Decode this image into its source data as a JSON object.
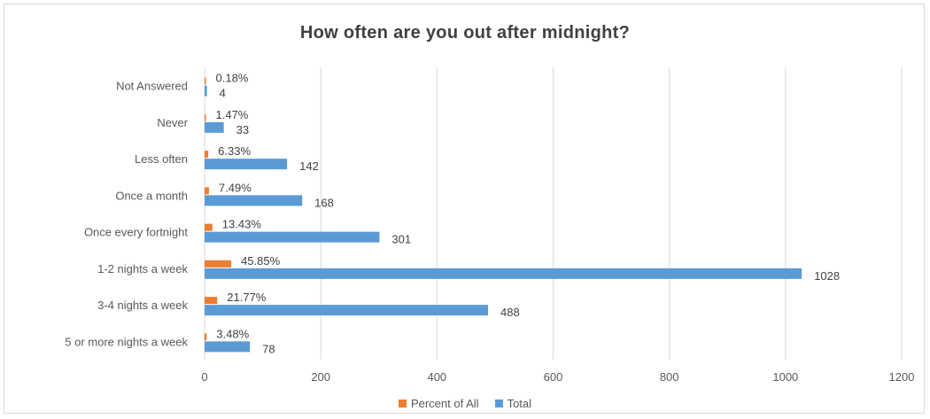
{
  "chart_data": {
    "type": "bar",
    "orientation": "horizontal",
    "title": "How often are you out after midnight?",
    "categories": [
      "Not Answered",
      "Never",
      "Less often",
      "Once a month",
      "Once every fortnight",
      "1-2 nights a week",
      "3-4 nights a week",
      "5 or more nights a week"
    ],
    "series": [
      {
        "name": "Percent of All",
        "color": "#ed7d31",
        "values": [
          0.18,
          1.47,
          6.33,
          7.49,
          13.43,
          45.85,
          21.77,
          3.48
        ],
        "labels": [
          "0.18%",
          "1.47%",
          "6.33%",
          "7.49%",
          "13.43%",
          "45.85%",
          "21.77%",
          "3.48%"
        ]
      },
      {
        "name": "Total",
        "color": "#5b9bd5",
        "values": [
          4,
          33,
          142,
          168,
          301,
          1028,
          488,
          78
        ],
        "labels": [
          "4",
          "33",
          "142",
          "168",
          "301",
          "1028",
          "488",
          "78"
        ]
      }
    ],
    "xlim": [
      0,
      1200
    ],
    "xticks": [
      "0",
      "200",
      "400",
      "600",
      "800",
      "1000",
      "1200"
    ],
    "grid": true,
    "legend_position": "bottom"
  }
}
